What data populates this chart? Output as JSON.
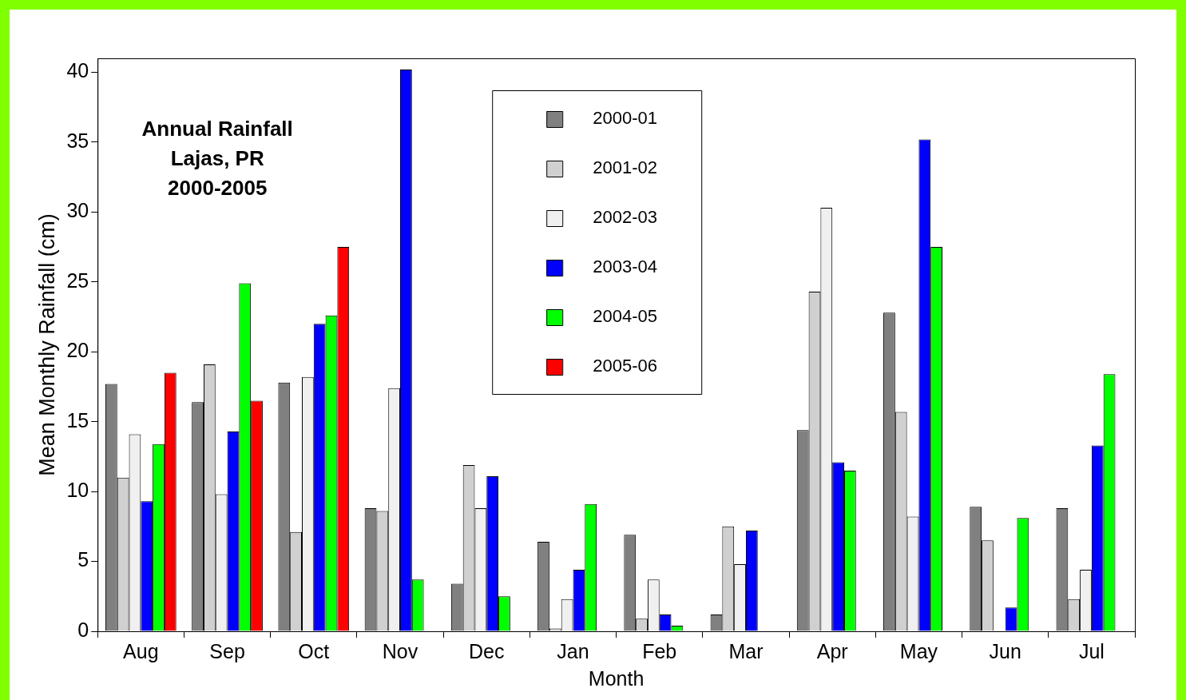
{
  "chart_data": {
    "type": "bar",
    "xlabel": "Month",
    "ylabel": "Mean Monthly Rainfall (cm)",
    "annotations": [
      "Annual Rainfall",
      "Lajas, PR",
      "2000-2005"
    ],
    "categories": [
      "Aug",
      "Sep",
      "Oct",
      "Nov",
      "Dec",
      "Jan",
      "Feb",
      "Mar",
      "Apr",
      "May",
      "Jun",
      "Jul"
    ],
    "series": [
      {
        "name": "2000-01",
        "color": "#808080",
        "values": [
          17.7,
          16.4,
          17.8,
          8.8,
          3.4,
          6.4,
          6.9,
          1.2,
          14.4,
          22.8,
          8.9,
          8.8
        ]
      },
      {
        "name": "2001-02",
        "color": "#d0d0d0",
        "values": [
          11.0,
          19.1,
          7.1,
          8.6,
          11.9,
          0.2,
          0.9,
          7.5,
          24.3,
          15.7,
          6.5,
          2.3
        ]
      },
      {
        "name": "2002-03",
        "color": "#f0f0f0",
        "values": [
          14.1,
          9.8,
          18.2,
          17.4,
          8.8,
          2.3,
          3.7,
          4.8,
          30.3,
          8.2,
          null,
          4.4
        ]
      },
      {
        "name": "2003-04",
        "color": "#0000ff",
        "values": [
          9.3,
          14.3,
          22.0,
          40.2,
          11.1,
          4.4,
          1.2,
          7.2,
          12.1,
          35.2,
          1.7,
          13.3
        ]
      },
      {
        "name": "2004-05",
        "color": "#00ff00",
        "values": [
          13.4,
          24.9,
          22.6,
          3.7,
          2.5,
          9.1,
          0.4,
          null,
          11.5,
          27.5,
          8.1,
          18.4
        ]
      },
      {
        "name": "2005-06",
        "color": "#ff0000",
        "values": [
          18.5,
          16.5,
          27.5,
          null,
          null,
          null,
          null,
          null,
          null,
          null,
          null,
          null
        ]
      }
    ],
    "ylim": [
      0,
      41
    ],
    "yticks": [
      0,
      5,
      10,
      15,
      20,
      25,
      30,
      35,
      40
    ],
    "grid": false,
    "legend": "top"
  }
}
